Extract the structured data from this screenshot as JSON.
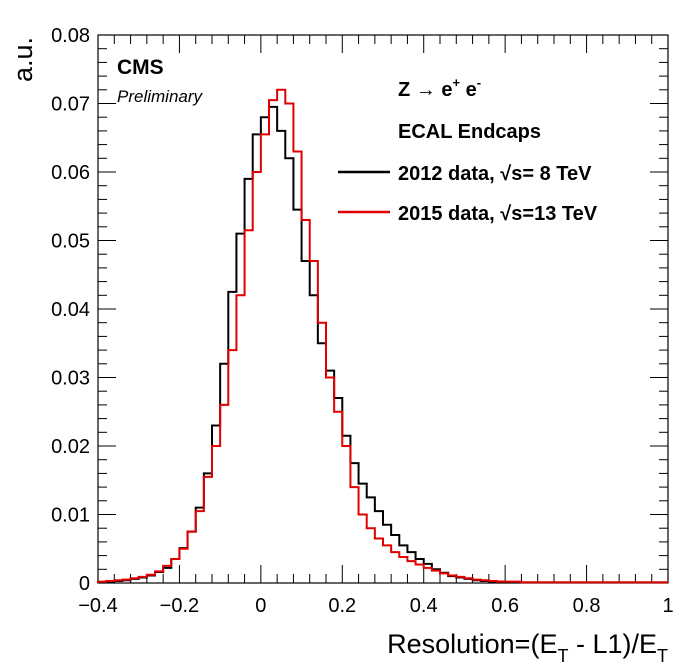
{
  "chart_data": {
    "type": "histogram",
    "xlabel_main": "Resolution=(E",
    "xlabel_sub1": "T",
    "xlabel_mid": " - L1)/E",
    "xlabel_sub2": "T",
    "ylabel": "a.u.",
    "xlim": [
      -0.4,
      1.0
    ],
    "ylim": [
      0,
      0.08
    ],
    "x_ticks": [
      -0.4,
      -0.2,
      0,
      0.2,
      0.4,
      0.6,
      0.8,
      1
    ],
    "x_tick_labels": [
      "−0.4",
      "−0.2",
      "0",
      "0.2",
      "0.4",
      "0.6",
      "0.8",
      "1"
    ],
    "y_ticks": [
      0,
      0.01,
      0.02,
      0.03,
      0.04,
      0.05,
      0.06,
      0.07,
      0.08
    ],
    "y_tick_labels": [
      "0",
      "0.01",
      "0.02",
      "0.03",
      "0.04",
      "0.05",
      "0.06",
      "0.07",
      "0.08"
    ],
    "bin_width": 0.02,
    "x_start": -0.4,
    "series": [
      {
        "name": "2012 data,  √s= 8 TeV",
        "color": "#000000",
        "values": [
          0.0001,
          0.0002,
          0.0003,
          0.0004,
          0.0006,
          0.0008,
          0.0011,
          0.0016,
          0.0022,
          0.0035,
          0.0051,
          0.0075,
          0.011,
          0.016,
          0.023,
          0.032,
          0.0425,
          0.051,
          0.059,
          0.0655,
          0.068,
          0.0695,
          0.066,
          0.062,
          0.0545,
          0.047,
          0.042,
          0.035,
          0.031,
          0.027,
          0.0215,
          0.0175,
          0.0145,
          0.0125,
          0.0105,
          0.0085,
          0.007,
          0.0055,
          0.0045,
          0.0035,
          0.0028,
          0.002,
          0.0015,
          0.001,
          0.0008,
          0.0006,
          0.0004,
          0.0003,
          0.0002,
          0.0002,
          0.0001,
          0.0001,
          0.0001,
          0.0001,
          0.0001,
          0.0001,
          0.0001,
          0.0001,
          0.0001,
          0.0001,
          0.0001,
          0.0001,
          0.0001,
          0.0001,
          0.0001,
          0.0001,
          0.0001,
          0.0001,
          0.0001,
          0.0001
        ]
      },
      {
        "name": "2015 data,  √s=13 TeV",
        "color": "#e00000",
        "values": [
          0.0002,
          0.0003,
          0.0004,
          0.0005,
          0.0007,
          0.0009,
          0.0012,
          0.0017,
          0.0025,
          0.0035,
          0.005,
          0.0075,
          0.0105,
          0.0155,
          0.02,
          0.026,
          0.034,
          0.042,
          0.0515,
          0.06,
          0.0655,
          0.0705,
          0.072,
          0.07,
          0.063,
          0.053,
          0.047,
          0.038,
          0.03,
          0.025,
          0.02,
          0.014,
          0.01,
          0.008,
          0.0065,
          0.0055,
          0.0045,
          0.0038,
          0.0032,
          0.0027,
          0.0022,
          0.0018,
          0.0014,
          0.0011,
          0.0009,
          0.0007,
          0.0005,
          0.0004,
          0.0003,
          0.0002,
          0.0002,
          0.0002,
          0.0001,
          0.0001,
          0.0001,
          0.0001,
          0.0001,
          0.0001,
          0.0001,
          0.0001,
          0.0001,
          0.0001,
          0.0001,
          0.0001,
          0.0001,
          0.0001,
          0.0001,
          0.0001,
          0.0001,
          0.0001
        ]
      }
    ],
    "legend_position": "top-right",
    "annotations": {
      "experiment": "CMS",
      "status": "Preliminary",
      "process_prefix": "Z → e",
      "process_plus": "+",
      "process_mid": " e",
      "process_minus": "-",
      "region": "ECAL Endcaps"
    }
  }
}
